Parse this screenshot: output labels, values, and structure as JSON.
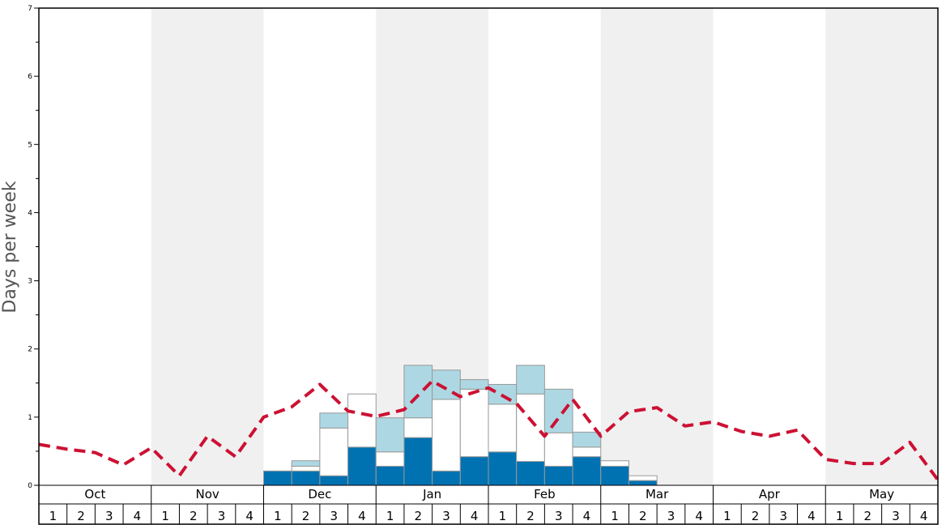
{
  "chart_data": {
    "type": "bar",
    "ylabel": "Days per week",
    "ylim": [
      0,
      7
    ],
    "y_ticks": [
      "0",
      "1",
      "2",
      "3",
      "4",
      "5",
      "6",
      "7"
    ],
    "months": [
      "Oct",
      "Nov",
      "Dec",
      "Jan",
      "Feb",
      "Mar",
      "Apr",
      "May"
    ],
    "week_labels": [
      "1",
      "2",
      "3",
      "4"
    ],
    "colors": {
      "dark_bar": "#0072b2",
      "white_bar": "#ffffff",
      "light_bar": "#add8e3",
      "line": "#cc1133",
      "shade": "#f0f0f0",
      "bar_edge": "#999999"
    },
    "stacked_bars": [
      {
        "month": "Dec",
        "week": 1,
        "dark": 0.21,
        "white": 0.0,
        "light": 0.0
      },
      {
        "month": "Dec",
        "week": 2,
        "dark": 0.21,
        "white": 0.07,
        "light": 0.08
      },
      {
        "month": "Dec",
        "week": 3,
        "dark": 0.14,
        "white": 0.7,
        "light": 0.22
      },
      {
        "month": "Dec",
        "week": 4,
        "dark": 0.56,
        "white": 0.78,
        "light": 0.0
      },
      {
        "month": "Jan",
        "week": 1,
        "dark": 0.28,
        "white": 0.21,
        "light": 0.5
      },
      {
        "month": "Jan",
        "week": 2,
        "dark": 0.7,
        "white": 0.29,
        "light": 0.77
      },
      {
        "month": "Jan",
        "week": 3,
        "dark": 0.21,
        "white": 1.05,
        "light": 0.43
      },
      {
        "month": "Jan",
        "week": 4,
        "dark": 0.42,
        "white": 0.99,
        "light": 0.14
      },
      {
        "month": "Feb",
        "week": 1,
        "dark": 0.49,
        "white": 0.7,
        "light": 0.29
      },
      {
        "month": "Feb",
        "week": 2,
        "dark": 0.35,
        "white": 0.99,
        "light": 0.42
      },
      {
        "month": "Feb",
        "week": 3,
        "dark": 0.28,
        "white": 0.49,
        "light": 0.64
      },
      {
        "month": "Feb",
        "week": 4,
        "dark": 0.42,
        "white": 0.14,
        "light": 0.22
      },
      {
        "month": "Mar",
        "week": 1,
        "dark": 0.28,
        "white": 0.08,
        "light": 0.0
      },
      {
        "month": "Mar",
        "week": 2,
        "dark": 0.07,
        "white": 0.07,
        "light": 0.0
      }
    ],
    "dashed_line": [
      0.6,
      0.53,
      0.48,
      0.3,
      0.55,
      0.14,
      0.72,
      0.42,
      1.0,
      1.15,
      1.48,
      1.09,
      1.01,
      1.11,
      1.53,
      1.3,
      1.43,
      1.2,
      0.72,
      1.26,
      0.72,
      1.08,
      1.14,
      0.87,
      0.93,
      0.79,
      0.72,
      0.81,
      0.38,
      0.32,
      0.32,
      0.63,
      0.08
    ],
    "grid": false,
    "legend": "none"
  }
}
